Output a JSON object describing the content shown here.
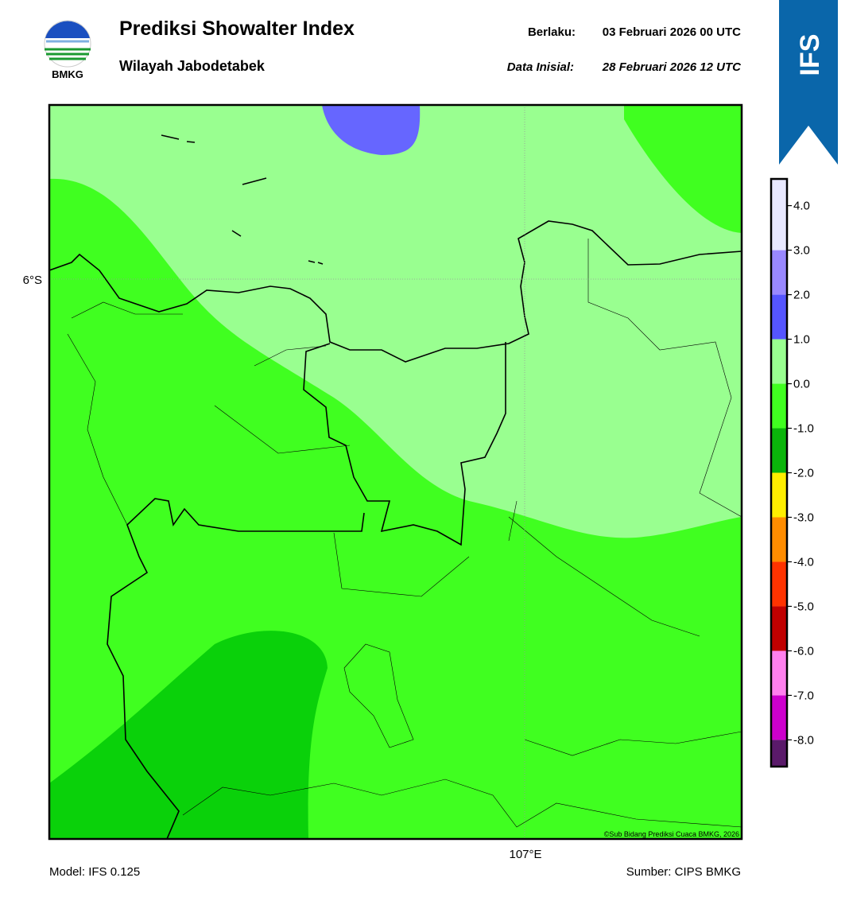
{
  "header": {
    "logo_text": "BMKG",
    "title": "Prediksi Showalter Index",
    "subtitle": "Wilayah Jabodetabek",
    "valid_label": "Berlaku:",
    "valid": "03 Februari 2026 00 UTC",
    "init_label": "Data Inisial:",
    "init": "28 Februari 2026 12 UTC"
  },
  "badge": "IFS",
  "map": {
    "lat_label": "6°S",
    "lon_label": "107°E",
    "credit": "©Sub Bidang Prediksi Cuaca BMKG, 2026"
  },
  "colorbar": {
    "lim": [
      -8.6,
      4.6
    ],
    "levels": [
      -8,
      -7,
      -6,
      -5,
      -4,
      -3,
      -2,
      -1,
      0,
      1,
      2,
      3
    ],
    "colors": [
      "#5a1a6a",
      "#cc00cc",
      "#ff80ee",
      "#c00000",
      "#ff3300",
      "#ff8c00",
      "#ffee00",
      "#0ab40a",
      "#40ff20",
      "#99ff90",
      "#5555ff",
      "#9988ff",
      "#e8e8ff"
    ],
    "ticks": [
      {
        "value": 4,
        "label": "4.0"
      },
      {
        "value": 3,
        "label": "3.0"
      },
      {
        "value": 2,
        "label": "2.0"
      },
      {
        "value": 1,
        "label": "1.0"
      },
      {
        "value": 0,
        "label": "0.0"
      },
      {
        "value": -1,
        "label": "-1.0"
      },
      {
        "value": -2,
        "label": "-2.0"
      },
      {
        "value": -3,
        "label": "-3.0"
      },
      {
        "value": -4,
        "label": "-4.0"
      },
      {
        "value": -5,
        "label": "-5.0"
      },
      {
        "value": -6,
        "label": "-6.0"
      },
      {
        "value": -7,
        "label": "-7.0"
      },
      {
        "value": -8,
        "label": "-8.0"
      }
    ]
  },
  "footer": {
    "model": "Model: IFS 0.125",
    "source": "Sumber: CIPS BMKG"
  }
}
